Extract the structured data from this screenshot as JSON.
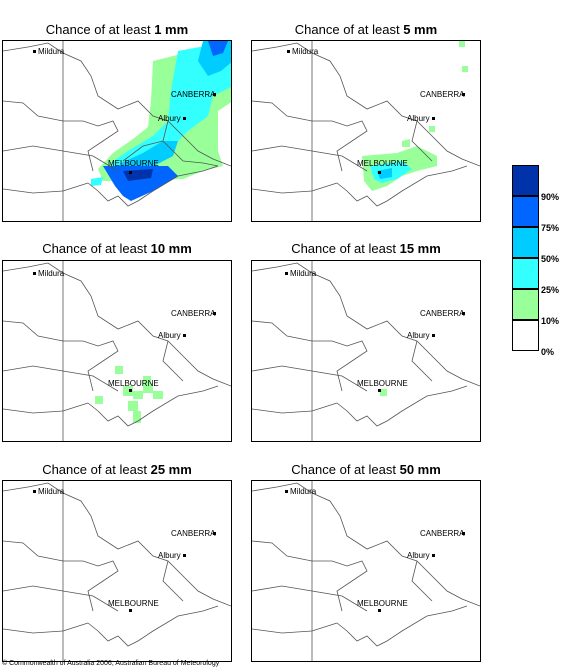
{
  "panels": [
    {
      "title_prefix": "Chance of at least",
      "title_value": "1 mm"
    },
    {
      "title_prefix": "Chance of at least",
      "title_value": "5 mm"
    },
    {
      "title_prefix": "Chance of at least",
      "title_value": "10 mm"
    },
    {
      "title_prefix": "Chance of at least",
      "title_value": "15 mm"
    },
    {
      "title_prefix": "Chance of at least",
      "title_value": "25 mm"
    },
    {
      "title_prefix": "Chance of at least",
      "title_value": "50 mm"
    }
  ],
  "places": {
    "mildura": "Mildura",
    "canberra": "CANBERRA",
    "albury": "Albury",
    "melbourne": "MELBOURNE"
  },
  "legend": {
    "labels": [
      "90%",
      "75%",
      "50%",
      "25%",
      "10%",
      "0%"
    ],
    "colors": [
      "#0033aa",
      "#0066ff",
      "#00ccff",
      "#33ffff",
      "#99ff99",
      "#ffffff"
    ]
  },
  "footer": "© Commonwealth of Australia 2006, Australian Bureau of Meteorology"
}
